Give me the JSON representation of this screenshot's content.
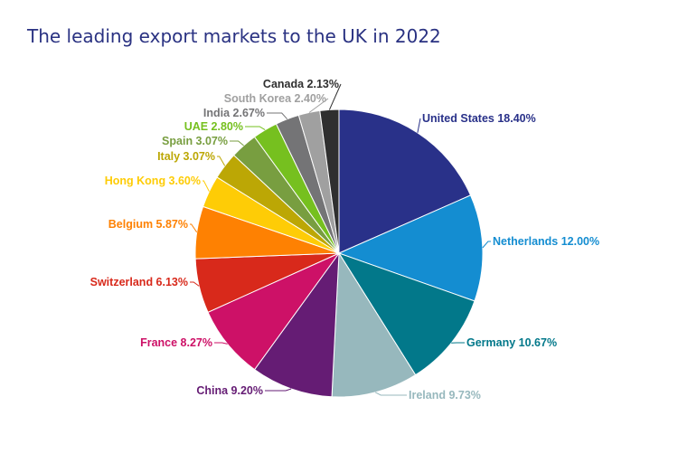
{
  "chart_data": {
    "type": "pie",
    "title": "The leading export markets to the UK in 2022",
    "slices": [
      {
        "label": "United States",
        "value": 18.4,
        "display": "United States 18.40%",
        "color": "#293189"
      },
      {
        "label": "Netherlands",
        "value": 12.0,
        "display": "Netherlands 12.00%",
        "color": "#148dd1"
      },
      {
        "label": "Germany",
        "value": 10.67,
        "display": "Germany 10.67%",
        "color": "#02788a"
      },
      {
        "label": "Ireland",
        "value": 9.73,
        "display": "Ireland 9.73%",
        "color": "#97b8bd"
      },
      {
        "label": "China",
        "value": 9.2,
        "display": "China 9.20%",
        "color": "#651c74"
      },
      {
        "label": "France",
        "value": 8.27,
        "display": "France 8.27%",
        "color": "#cd1167"
      },
      {
        "label": "Switzerland",
        "value": 6.13,
        "display": "Switzerland 6.13%",
        "color": "#d8291b"
      },
      {
        "label": "Belgium",
        "value": 5.87,
        "display": "Belgium 5.87%",
        "color": "#fe8102"
      },
      {
        "label": "Hong Kong",
        "value": 3.6,
        "display": "Hong Kong 3.60%",
        "color": "#fecc06"
      },
      {
        "label": "Italy",
        "value": 3.07,
        "display": "Italy 3.07%",
        "color": "#bca705"
      },
      {
        "label": "Spain",
        "value": 3.07,
        "display": "Spain 3.07%",
        "color": "#789e40"
      },
      {
        "label": "UAE",
        "value": 2.8,
        "display": "UAE 2.80%",
        "color": "#76c01f"
      },
      {
        "label": "India",
        "value": 2.67,
        "display": "India 2.67%",
        "color": "#747476"
      },
      {
        "label": "South Korea",
        "value": 2.4,
        "display": "South Korea 2.40%",
        "color": "#a0a0a0"
      },
      {
        "label": "Canada",
        "value": 2.13,
        "display": "Canada 2.13%",
        "color": "#2f2f2f"
      }
    ]
  }
}
